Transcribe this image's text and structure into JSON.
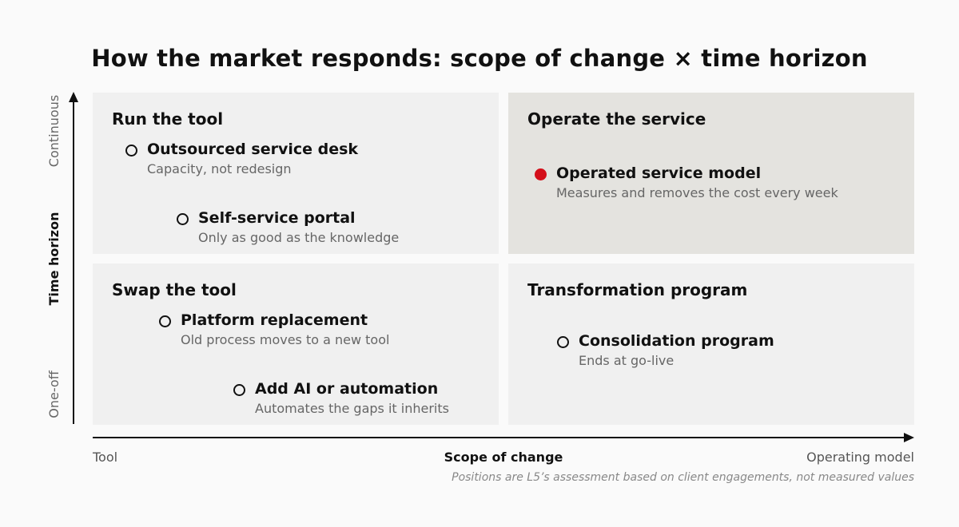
{
  "title": "How the market responds: scope of change × time horizon",
  "y_axis": {
    "title": "Time horizon",
    "top_label": "Continuous",
    "bottom_label": "One-off"
  },
  "x_axis": {
    "title": "Scope of change",
    "left_label": "Tool",
    "right_label": "Operating model"
  },
  "quadrants": [
    {
      "title": "Run the tool"
    },
    {
      "title": "Operate the service"
    },
    {
      "title": "Swap the tool"
    },
    {
      "title": "Transformation program"
    }
  ],
  "items": [
    {
      "label": "Outsourced service desk",
      "desc": "Capacity, not redesign",
      "highlighted": false
    },
    {
      "label": "Self-service portal",
      "desc": "Only as good as the knowledge",
      "highlighted": false
    },
    {
      "label": "Operated service model",
      "desc": "Measures and removes the cost every week",
      "highlighted": true
    },
    {
      "label": "Platform replacement",
      "desc": "Old process moves to a new tool",
      "highlighted": false
    },
    {
      "label": "Add AI or automation",
      "desc": "Automates the gaps it inherits",
      "highlighted": false
    },
    {
      "label": "Consolidation program",
      "desc": "Ends at go-live",
      "highlighted": false
    }
  ],
  "footnote": "Positions are L5’s assessment based on client engagements, not measured values",
  "colors": {
    "highlight_quadrant": "#e4e3df",
    "quadrant": "#f0f0f0",
    "highlight_marker": "#d40f1a"
  }
}
